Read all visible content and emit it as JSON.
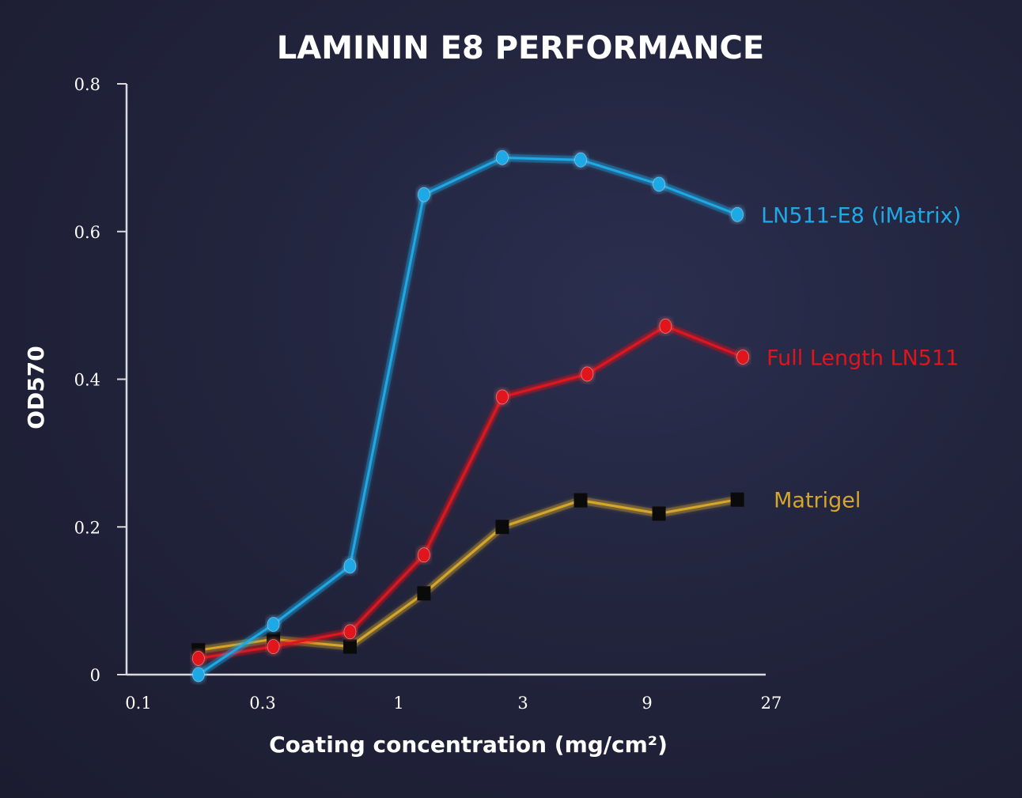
{
  "chart_data": {
    "type": "line",
    "title": "LAMININ E8 PERFORMANCE",
    "xlabel": "Coating concentration (mg/cm²)",
    "ylabel": "OD570",
    "xscale": "log",
    "xlim": [
      0.1,
      27
    ],
    "ylim": [
      0,
      0.8
    ],
    "x_ticks": [
      {
        "value": 0.1,
        "label": "0.1"
      },
      {
        "value": 0.3,
        "label": "0.3"
      },
      {
        "value": 1,
        "label": "1"
      },
      {
        "value": 3,
        "label": "3"
      },
      {
        "value": 9,
        "label": "9"
      },
      {
        "value": 27,
        "label": "27"
      }
    ],
    "y_ticks": [
      {
        "value": 0,
        "label": "0"
      },
      {
        "value": 0.2,
        "label": "0.2"
      },
      {
        "value": 0.4,
        "label": "0.4"
      },
      {
        "value": 0.6,
        "label": "0.6"
      },
      {
        "value": 0.8,
        "label": "0.8"
      }
    ],
    "legend_placement": "right, at end of each series",
    "series": [
      {
        "name": "LN511-E8 (iMatrix)",
        "color": "#1fa9e6",
        "marker": "circle",
        "x": [
          0.17,
          0.33,
          0.65,
          1.25,
          2.5,
          5.0,
          10.0,
          20.0
        ],
        "y": [
          0.0,
          0.068,
          0.147,
          0.65,
          0.7,
          0.697,
          0.664,
          0.623
        ]
      },
      {
        "name": "Full Length LN511",
        "color": "#e0141b",
        "marker": "circle",
        "x": [
          0.17,
          0.33,
          0.65,
          1.25,
          2.5,
          5.3,
          10.6,
          21.0
        ],
        "y": [
          0.022,
          0.038,
          0.058,
          0.162,
          0.376,
          0.407,
          0.472,
          0.43
        ]
      },
      {
        "name": "Matrigel",
        "color": "#d4a62a",
        "marker": "square",
        "x": [
          0.17,
          0.33,
          0.65,
          1.25,
          2.5,
          5.0,
          10.0,
          20.0
        ],
        "y": [
          0.033,
          0.048,
          0.038,
          0.11,
          0.2,
          0.236,
          0.218,
          0.237
        ]
      }
    ]
  }
}
